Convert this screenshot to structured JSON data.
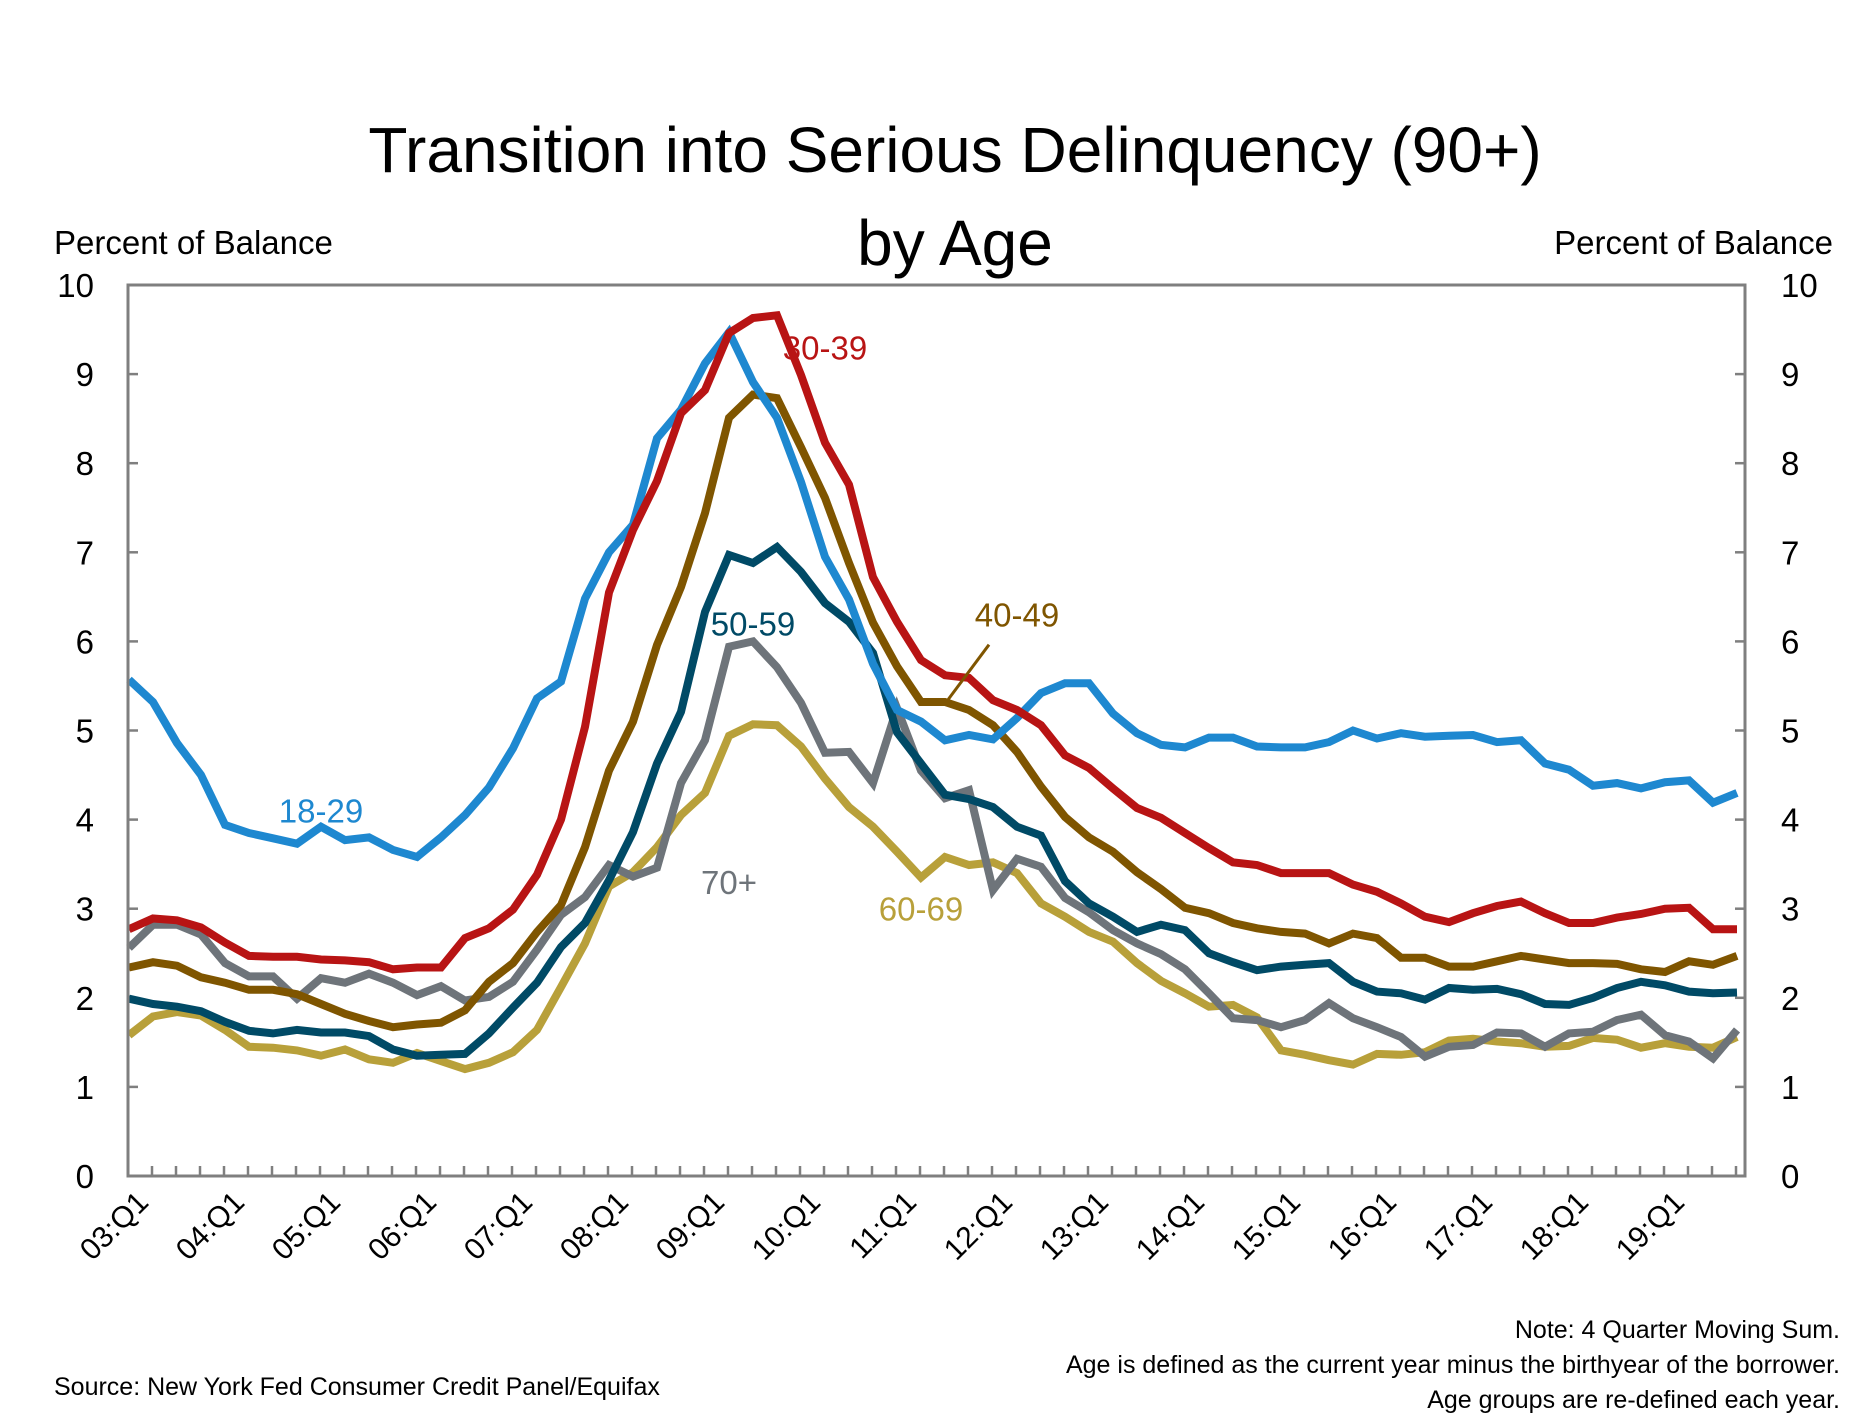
{
  "chart_data": {
    "type": "line",
    "title": [
      "Transition into Serious Delinquency (90+)",
      "by Age"
    ],
    "ylabel_left": "Percent of Balance",
    "ylabel_right": "Percent of Balance",
    "xlabel": "",
    "ylim": [
      0,
      10
    ],
    "yticks": [
      "0",
      "1",
      "2",
      "3",
      "4",
      "5",
      "6",
      "7",
      "8",
      "9",
      "10"
    ],
    "grid": false,
    "legend": "inline labels",
    "x": [
      "03:Q1",
      "03:Q2",
      "03:Q3",
      "03:Q4",
      "04:Q1",
      "04:Q2",
      "04:Q3",
      "04:Q4",
      "05:Q1",
      "05:Q2",
      "05:Q3",
      "05:Q4",
      "06:Q1",
      "06:Q2",
      "06:Q3",
      "06:Q4",
      "07:Q1",
      "07:Q2",
      "07:Q3",
      "07:Q4",
      "08:Q1",
      "08:Q2",
      "08:Q3",
      "08:Q4",
      "09:Q1",
      "09:Q2",
      "09:Q3",
      "09:Q4",
      "10:Q1",
      "10:Q2",
      "10:Q3",
      "10:Q4",
      "11:Q1",
      "11:Q2",
      "11:Q3",
      "11:Q4",
      "12:Q1",
      "12:Q2",
      "12:Q3",
      "12:Q4",
      "13:Q1",
      "13:Q2",
      "13:Q3",
      "13:Q4",
      "14:Q1",
      "14:Q2",
      "14:Q3",
      "14:Q4",
      "15:Q1",
      "15:Q2",
      "15:Q3",
      "15:Q4",
      "16:Q1",
      "16:Q2",
      "16:Q3",
      "16:Q4",
      "17:Q1",
      "17:Q2",
      "17:Q3",
      "17:Q4",
      "18:Q1",
      "18:Q2",
      "18:Q3",
      "18:Q4",
      "19:Q1",
      "19:Q2",
      "19:Q3",
      "19:Q4"
    ],
    "xtick_labels": [
      "03:Q1",
      "04:Q1",
      "05:Q1",
      "06:Q1",
      "07:Q1",
      "08:Q1",
      "09:Q1",
      "10:Q1",
      "11:Q1",
      "12:Q1",
      "13:Q1",
      "14:Q1",
      "15:Q1",
      "16:Q1",
      "17:Q1",
      "18:Q1",
      "19:Q1"
    ],
    "series": [
      {
        "name": "18-29",
        "color": "#1e88d0",
        "values": [
          5.57,
          5.32,
          4.86,
          4.5,
          3.94,
          3.85,
          3.79,
          3.73,
          3.92,
          3.77,
          3.8,
          3.66,
          3.58,
          3.8,
          4.05,
          4.36,
          4.8,
          5.36,
          5.55,
          6.48,
          7.0,
          7.31,
          8.28,
          8.6,
          9.12,
          9.47,
          8.91,
          8.51,
          7.79,
          6.95,
          6.47,
          5.75,
          5.23,
          5.1,
          4.89,
          4.95,
          4.9,
          5.14,
          5.42,
          5.53,
          5.53,
          5.19,
          4.97,
          4.84,
          4.81,
          4.92,
          4.92,
          4.82,
          4.81,
          4.81,
          4.87,
          5.0,
          4.91,
          4.97,
          4.93,
          4.94,
          4.95,
          4.87,
          4.89,
          4.63,
          4.56,
          4.38,
          4.41,
          4.35,
          4.42,
          4.44,
          4.19,
          4.3
        ]
      },
      {
        "name": "30-39",
        "color": "#b81414",
        "values": [
          2.77,
          2.89,
          2.87,
          2.79,
          2.62,
          2.47,
          2.46,
          2.46,
          2.43,
          2.42,
          2.4,
          2.32,
          2.34,
          2.34,
          2.67,
          2.78,
          2.99,
          3.38,
          4.0,
          5.04,
          6.55,
          7.25,
          7.8,
          8.56,
          8.82,
          9.46,
          9.63,
          9.66,
          8.99,
          8.23,
          7.76,
          6.72,
          6.22,
          5.79,
          5.62,
          5.59,
          5.34,
          5.23,
          5.06,
          4.72,
          4.58,
          4.35,
          4.13,
          4.02,
          3.85,
          3.68,
          3.52,
          3.49,
          3.4,
          3.4,
          3.4,
          3.27,
          3.19,
          3.06,
          2.91,
          2.85,
          2.95,
          3.03,
          3.08,
          2.95,
          2.84,
          2.84,
          2.9,
          2.94,
          3.0,
          3.01,
          2.77,
          2.77
        ]
      },
      {
        "name": "40-49",
        "color": "#7f5500",
        "values": [
          2.34,
          2.4,
          2.36,
          2.23,
          2.17,
          2.09,
          2.09,
          2.04,
          1.93,
          1.82,
          1.74,
          1.67,
          1.7,
          1.72,
          1.86,
          2.18,
          2.39,
          2.74,
          3.04,
          3.69,
          4.55,
          5.1,
          5.96,
          6.61,
          7.44,
          8.51,
          8.77,
          8.73,
          8.18,
          7.61,
          6.88,
          6.21,
          5.72,
          5.32,
          5.32,
          5.23,
          5.06,
          4.76,
          4.37,
          4.03,
          3.8,
          3.64,
          3.41,
          3.22,
          3.01,
          2.95,
          2.84,
          2.78,
          2.74,
          2.72,
          2.61,
          2.72,
          2.67,
          2.45,
          2.45,
          2.35,
          2.35,
          2.41,
          2.47,
          2.43,
          2.39,
          2.39,
          2.38,
          2.32,
          2.29,
          2.41,
          2.37,
          2.47
        ]
      },
      {
        "name": "50-59",
        "color": "#004a66",
        "values": [
          1.99,
          1.93,
          1.9,
          1.85,
          1.73,
          1.63,
          1.6,
          1.64,
          1.61,
          1.61,
          1.57,
          1.42,
          1.35,
          1.36,
          1.37,
          1.6,
          1.89,
          2.17,
          2.57,
          2.84,
          3.32,
          3.86,
          4.63,
          5.21,
          6.33,
          6.97,
          6.88,
          7.06,
          6.78,
          6.43,
          6.22,
          5.87,
          4.98,
          4.63,
          4.28,
          4.23,
          4.14,
          3.92,
          3.82,
          3.31,
          3.06,
          2.91,
          2.74,
          2.82,
          2.76,
          2.5,
          2.4,
          2.31,
          2.35,
          2.37,
          2.39,
          2.18,
          2.07,
          2.05,
          1.98,
          2.11,
          2.09,
          2.1,
          2.04,
          1.93,
          1.92,
          2.0,
          2.11,
          2.18,
          2.14,
          2.07,
          2.05,
          2.06
        ]
      },
      {
        "name": "60-69",
        "color": "#b8a03a",
        "values": [
          1.58,
          1.79,
          1.84,
          1.8,
          1.64,
          1.45,
          1.44,
          1.41,
          1.35,
          1.42,
          1.31,
          1.27,
          1.38,
          1.29,
          1.2,
          1.27,
          1.39,
          1.64,
          2.12,
          2.61,
          3.25,
          3.41,
          3.69,
          4.05,
          4.3,
          4.94,
          5.07,
          5.06,
          4.82,
          4.46,
          4.14,
          3.92,
          3.64,
          3.35,
          3.58,
          3.49,
          3.52,
          3.4,
          3.06,
          2.91,
          2.74,
          2.63,
          2.39,
          2.19,
          2.05,
          1.9,
          1.92,
          1.78,
          1.41,
          1.36,
          1.3,
          1.25,
          1.37,
          1.36,
          1.39,
          1.52,
          1.54,
          1.51,
          1.49,
          1.45,
          1.46,
          1.55,
          1.53,
          1.44,
          1.49,
          1.45,
          1.44,
          1.56
        ]
      },
      {
        "name": "70+",
        "color": "#6e747a",
        "values": [
          2.56,
          2.82,
          2.82,
          2.71,
          2.39,
          2.24,
          2.24,
          1.99,
          2.22,
          2.17,
          2.27,
          2.17,
          2.03,
          2.13,
          1.97,
          2.01,
          2.18,
          2.54,
          2.93,
          3.13,
          3.49,
          3.36,
          3.46,
          4.41,
          4.89,
          5.94,
          6.0,
          5.71,
          5.31,
          4.75,
          4.76,
          4.41,
          5.25,
          4.55,
          4.24,
          4.33,
          3.21,
          3.56,
          3.47,
          3.12,
          2.96,
          2.76,
          2.61,
          2.49,
          2.32,
          2.05,
          1.77,
          1.75,
          1.67,
          1.75,
          1.94,
          1.77,
          1.67,
          1.56,
          1.34,
          1.45,
          1.47,
          1.61,
          1.6,
          1.45,
          1.6,
          1.62,
          1.75,
          1.81,
          1.58,
          1.51,
          1.32,
          1.64
        ]
      }
    ],
    "annotations": [
      {
        "text": "18-29",
        "series": "18-29",
        "anchor_quarter": "05:Q1",
        "anchor_value": 4.1
      },
      {
        "text": "30-39",
        "series": "30-39",
        "anchor_quarter": "10:Q2",
        "anchor_value": 9.3
      },
      {
        "text": "40-49",
        "series": "40-49",
        "anchor_quarter": "12:Q2",
        "anchor_value": 6.3,
        "leader_to_quarter": "11:Q3",
        "leader_to_value": 5.3
      },
      {
        "text": "50-59",
        "series": "50-59",
        "anchor_quarter": "09:Q3",
        "anchor_value": 6.2
      },
      {
        "text": "60-69",
        "series": "60-69",
        "anchor_quarter": "11:Q2",
        "anchor_value": 3.0
      },
      {
        "text": "70+",
        "series": "70+",
        "anchor_quarter": "09:Q2",
        "anchor_value": 3.3
      }
    ],
    "notes": [
      "Note: 4 Quarter Moving Sum.",
      "Age is defined as the current year minus the birthyear of the borrower.",
      "Age groups are re-defined each year."
    ],
    "source": "Source: New York Fed Consumer Credit Panel/Equifax"
  }
}
